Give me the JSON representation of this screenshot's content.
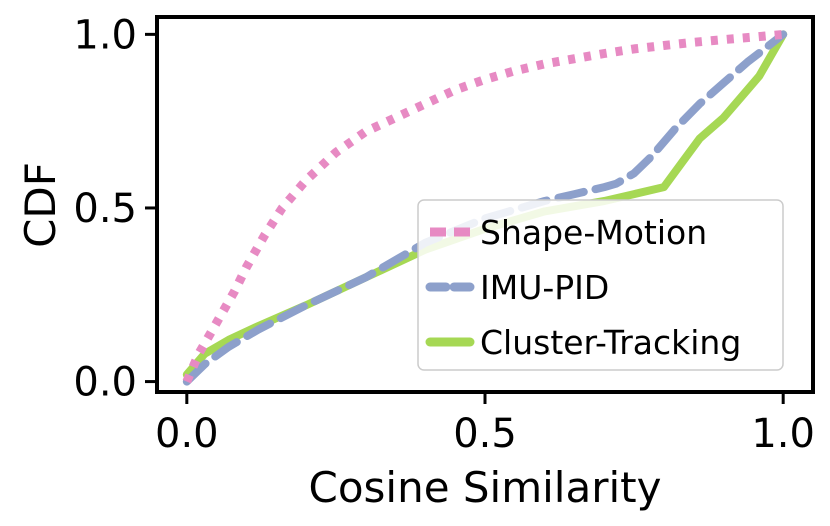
{
  "chart_data": {
    "type": "line",
    "title": "",
    "xlabel": "Cosine Similarity",
    "ylabel": "CDF",
    "xlim": [
      -0.05,
      1.05
    ],
    "ylim": [
      -0.03,
      1.05
    ],
    "xticks": [
      0.0,
      0.5,
      1.0
    ],
    "xtick_labels": [
      "0.0",
      "0.5",
      "1.0"
    ],
    "yticks": [
      0.0,
      0.5,
      1.0
    ],
    "ytick_labels": [
      "0.0",
      "0.5",
      "1.0"
    ],
    "grid": false,
    "legend_position": "lower-right",
    "series": [
      {
        "name": "Shape-Motion",
        "color": "#e78ac3",
        "style": "dotted",
        "x": [
          0.0,
          0.02,
          0.04,
          0.06,
          0.08,
          0.1,
          0.13,
          0.16,
          0.2,
          0.25,
          0.3,
          0.35,
          0.4,
          0.45,
          0.5,
          0.55,
          0.6,
          0.65,
          0.7,
          0.75,
          0.8,
          0.85,
          0.9,
          0.95,
          1.0
        ],
        "y": [
          0.0,
          0.08,
          0.14,
          0.2,
          0.26,
          0.33,
          0.42,
          0.5,
          0.58,
          0.66,
          0.72,
          0.76,
          0.8,
          0.84,
          0.87,
          0.895,
          0.915,
          0.93,
          0.945,
          0.958,
          0.968,
          0.977,
          0.985,
          0.992,
          1.0
        ]
      },
      {
        "name": "IMU-PID",
        "color": "#8da0cb",
        "style": "dashed",
        "x": [
          0.0,
          0.03,
          0.07,
          0.12,
          0.2,
          0.3,
          0.4,
          0.5,
          0.6,
          0.65,
          0.7,
          0.72,
          0.75,
          0.78,
          0.82,
          0.86,
          0.9,
          0.94,
          0.97,
          1.0
        ],
        "y": [
          0.0,
          0.05,
          0.1,
          0.15,
          0.22,
          0.3,
          0.4,
          0.47,
          0.52,
          0.54,
          0.56,
          0.57,
          0.6,
          0.65,
          0.73,
          0.8,
          0.86,
          0.92,
          0.96,
          1.0
        ]
      },
      {
        "name": "Cluster-Tracking",
        "color": "#a6d854",
        "style": "solid",
        "x": [
          0.0,
          0.03,
          0.07,
          0.12,
          0.2,
          0.3,
          0.4,
          0.5,
          0.6,
          0.7,
          0.75,
          0.8,
          0.83,
          0.86,
          0.9,
          0.93,
          0.96,
          1.0
        ],
        "y": [
          0.02,
          0.08,
          0.12,
          0.16,
          0.22,
          0.3,
          0.38,
          0.44,
          0.49,
          0.52,
          0.54,
          0.56,
          0.63,
          0.7,
          0.76,
          0.82,
          0.88,
          1.0
        ]
      }
    ]
  }
}
